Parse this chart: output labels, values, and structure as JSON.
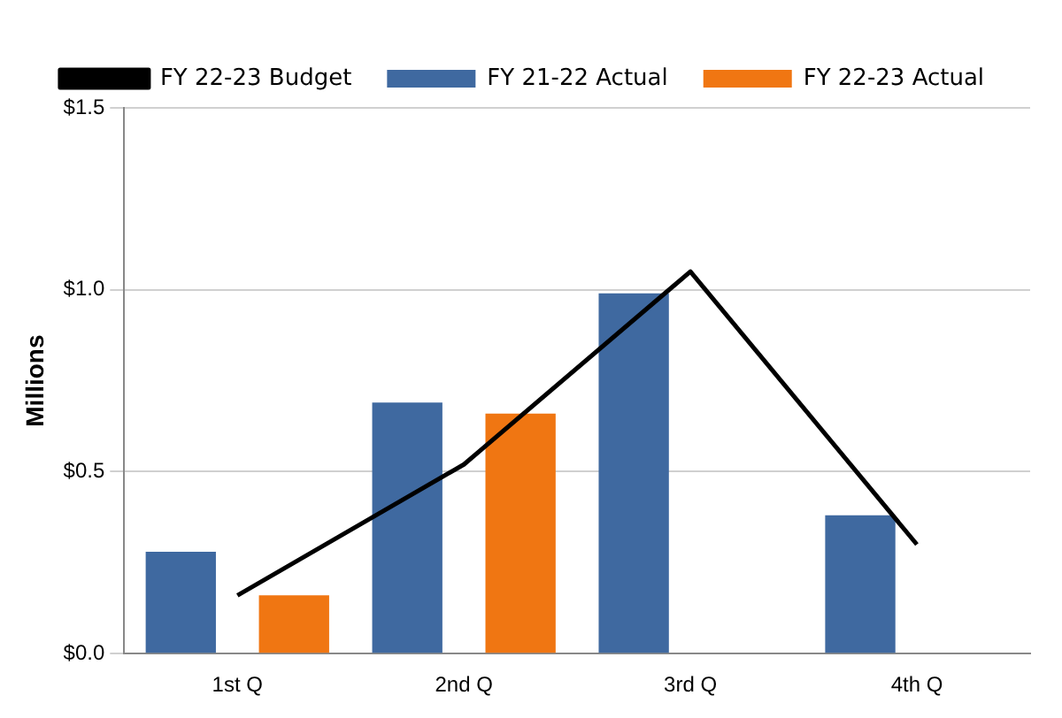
{
  "chart_data": {
    "type": "bar",
    "ylabel": "Millions",
    "categories": [
      "1st Q",
      "2nd Q",
      "3rd Q",
      "4th Q"
    ],
    "series": [
      {
        "name": "FY 21-22 Actual",
        "color": "#3f69a0",
        "values": [
          0.28,
          0.69,
          0.99,
          0.38
        ]
      },
      {
        "name": "FY 22-23 Actual",
        "color": "#f07612",
        "values": [
          0.16,
          0.66,
          null,
          null
        ]
      },
      {
        "name": "FY 22-23 Budget",
        "type": "line",
        "color": "#000000",
        "values": [
          0.16,
          0.52,
          1.05,
          0.3
        ]
      }
    ],
    "ylim": [
      0,
      1.5
    ],
    "yticks": [
      {
        "value": 0,
        "label": "$0.0"
      },
      {
        "value": 0.5,
        "label": "$0.5"
      },
      {
        "value": 1,
        "label": "$1.0"
      },
      {
        "value": 1.5,
        "label": "$1.5"
      }
    ],
    "grid": "y",
    "legend": "top",
    "marker": "none",
    "line_style": "solid"
  }
}
